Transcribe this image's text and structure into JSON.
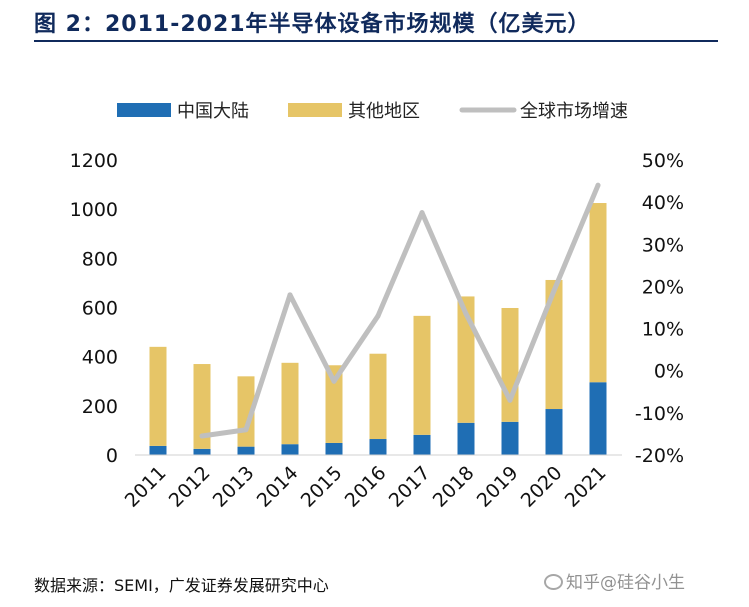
{
  "title": "图 2：2011-2021年半导体设备市场规模（亿美元）",
  "source": "数据来源：SEMI，广发证券发展研究中心",
  "watermark": "知乎@硅谷小生",
  "colors": {
    "china": "#1f6eb4",
    "other": "#e6c567",
    "growth": "#bfbfbf",
    "title": "#102a5c"
  },
  "chart_data": {
    "type": "bar",
    "stacked": true,
    "secondary_type": "line",
    "categories": [
      "2011",
      "2012",
      "2013",
      "2014",
      "2015",
      "2016",
      "2017",
      "2018",
      "2019",
      "2020",
      "2021"
    ],
    "series": [
      {
        "name": "中国大陆",
        "axis": "left",
        "values": [
          37,
          25,
          34,
          44,
          49,
          65,
          82,
          131,
          135,
          187,
          296
        ]
      },
      {
        "name": "其他地区",
        "axis": "left",
        "values": [
          403,
          345,
          286,
          331,
          316,
          347,
          484,
          514,
          463,
          525,
          729
        ]
      },
      {
        "name": "全球市场增速",
        "axis": "right",
        "type": "line",
        "values": [
          null,
          -15.5,
          -14.0,
          18.0,
          -2.5,
          13.0,
          37.5,
          13.5,
          -7.0,
          19.0,
          44.0
        ]
      }
    ],
    "y_left": {
      "ylim": [
        0,
        1200
      ],
      "ticks": [
        "0",
        "200",
        "400",
        "600",
        "800",
        "1000",
        "1200"
      ]
    },
    "y_right": {
      "ylim": [
        -20,
        50
      ],
      "ticks": [
        "-20%",
        "-10%",
        "0%",
        "10%",
        "20%",
        "30%",
        "40%",
        "50%"
      ]
    },
    "legend": {
      "placement": "top",
      "items": [
        "中国大陆",
        "其他地区",
        "全球市场增速"
      ]
    },
    "grid": false
  }
}
